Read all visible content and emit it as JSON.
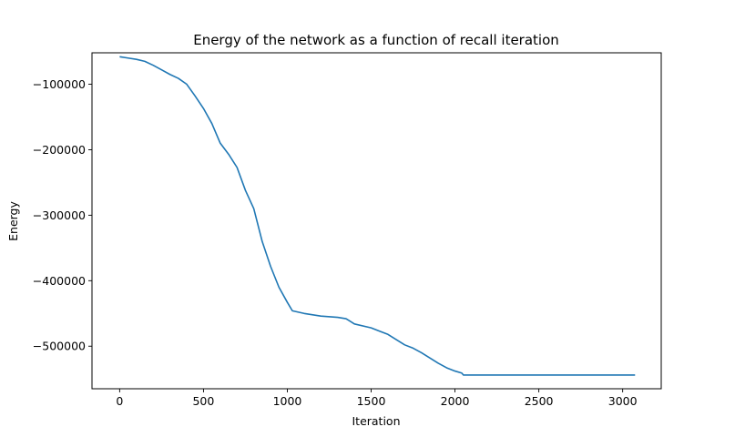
{
  "chart_data": {
    "type": "line",
    "title": "Energy of the network as a function of recall iteration",
    "xlabel": "Iteration",
    "ylabel": "Energy",
    "xlim": [
      -165,
      3230
    ],
    "ylim": [
      -565000,
      -52000
    ],
    "xticks": [
      {
        "value": 0,
        "label": "0"
      },
      {
        "value": 500,
        "label": "500"
      },
      {
        "value": 1000,
        "label": "1000"
      },
      {
        "value": 1500,
        "label": "1500"
      },
      {
        "value": 2000,
        "label": "2000"
      },
      {
        "value": 2500,
        "label": "2500"
      },
      {
        "value": 3000,
        "label": "3000"
      }
    ],
    "yticks": [
      {
        "value": -100000,
        "label": "−100000"
      },
      {
        "value": -200000,
        "label": "−200000"
      },
      {
        "value": -300000,
        "label": "−300000"
      },
      {
        "value": -400000,
        "label": "−400000"
      },
      {
        "value": -500000,
        "label": "−500000"
      }
    ],
    "grid": false,
    "legend": "none",
    "series": [
      {
        "color": "#1f77b4",
        "x": [
          0,
          50,
          100,
          150,
          200,
          250,
          300,
          350,
          400,
          450,
          500,
          550,
          600,
          650,
          700,
          750,
          800,
          850,
          900,
          950,
          1000,
          1030,
          1100,
          1200,
          1300,
          1350,
          1400,
          1500,
          1550,
          1600,
          1650,
          1700,
          1750,
          1800,
          1850,
          1900,
          1950,
          2000,
          2040,
          2050,
          2500,
          3074
        ],
        "y": [
          -58000,
          -60000,
          -62000,
          -65000,
          -71000,
          -78000,
          -85000,
          -91000,
          -100000,
          -118000,
          -137000,
          -160000,
          -190000,
          -207000,
          -227000,
          -262000,
          -290000,
          -340000,
          -378000,
          -410000,
          -433000,
          -446000,
          -450000,
          -454000,
          -456000,
          -458000,
          -466000,
          -472000,
          -477000,
          -482000,
          -490000,
          -498000,
          -503000,
          -510000,
          -518000,
          -526000,
          -533000,
          -538000,
          -541000,
          -544000,
          -544000,
          -544000
        ]
      }
    ]
  },
  "colors": {
    "line": "#1f77b4",
    "axes": "#000000",
    "background": "#ffffff"
  }
}
